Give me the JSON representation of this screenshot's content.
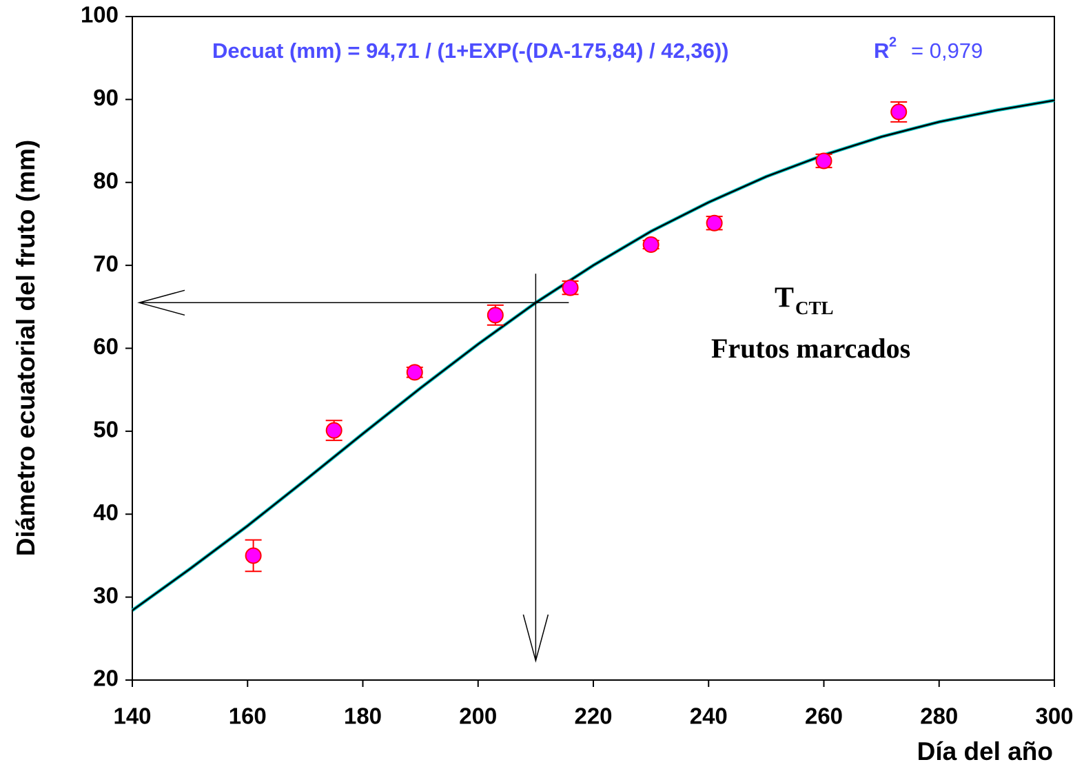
{
  "chart_data": {
    "type": "scatter",
    "x_label": "Día del año",
    "y_label": "Diámetro ecuatorial del fruto (mm)",
    "equation": "Decuat (mm) = 94,71 / (1+EXP(-(DA-175,84) / 42,36))",
    "r2_label": "R",
    "r2_sup": "2",
    "r2_value": "= 0,979",
    "annotation": "T",
    "annotation_sub": "CTL",
    "annotation_line2": "Frutos marcados",
    "x": [
      161,
      175,
      189,
      203,
      216,
      230,
      241,
      260,
      273
    ],
    "values": [
      35,
      50.1,
      57.1,
      64,
      67.3,
      72.5,
      75.1,
      82.6,
      88.5
    ],
    "errors": [
      1.9,
      1.2,
      0.6,
      1.2,
      0.8,
      0.5,
      0.8,
      0.8,
      1.2
    ],
    "color": "#ff00ff",
    "error_color": "#ff0000",
    "fit": {
      "x": [
        140,
        150,
        160,
        170,
        180,
        190,
        200,
        210,
        220,
        230,
        240,
        250,
        260,
        270,
        280,
        290,
        300
      ],
      "values": [
        28.4,
        33.4,
        38.6,
        44.1,
        49.7,
        55.2,
        60.5,
        65.5,
        70.0,
        74.1,
        77.6,
        80.7,
        83.3,
        85.5,
        87.3,
        88.7,
        89.9
      ],
      "color": "#000000"
    },
    "guide": {
      "x": 210,
      "y": 65.5
    },
    "xlim": [
      140,
      300
    ],
    "ylim": [
      20,
      100
    ],
    "xticks": [
      140,
      160,
      180,
      200,
      220,
      240,
      260,
      280,
      300
    ],
    "yticks": [
      20,
      30,
      40,
      50,
      60,
      70,
      80,
      90,
      100
    ]
  }
}
